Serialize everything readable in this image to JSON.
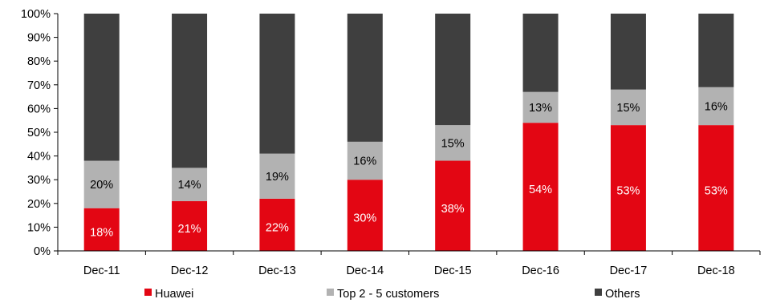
{
  "chart_data": {
    "type": "bar",
    "stacked": true,
    "categories": [
      "Dec-11",
      "Dec-12",
      "Dec-13",
      "Dec-14",
      "Dec-15",
      "Dec-16",
      "Dec-17",
      "Dec-18"
    ],
    "series": [
      {
        "name": "Huawei",
        "color": "#e30613",
        "values": [
          18,
          21,
          22,
          30,
          38,
          54,
          53,
          53
        ],
        "labels": [
          "18%",
          "21%",
          "22%",
          "30%",
          "38%",
          "54%",
          "53%",
          "53%"
        ]
      },
      {
        "name": "Top 2 - 5 customers",
        "color": "#b2b2b2",
        "values": [
          20,
          14,
          19,
          16,
          15,
          13,
          15,
          16
        ],
        "labels": [
          "20%",
          "14%",
          "19%",
          "16%",
          "15%",
          "13%",
          "15%",
          "16%"
        ]
      },
      {
        "name": "Others",
        "color": "#3f3f3f",
        "values": [
          62,
          65,
          59,
          54,
          47,
          33,
          32,
          31
        ],
        "labels": []
      }
    ],
    "ylim": [
      0,
      100
    ],
    "yticks": [
      "0%",
      "10%",
      "20%",
      "30%",
      "40%",
      "50%",
      "60%",
      "70%",
      "80%",
      "90%",
      "100%"
    ],
    "legend_position": "bottom",
    "grid": false
  }
}
